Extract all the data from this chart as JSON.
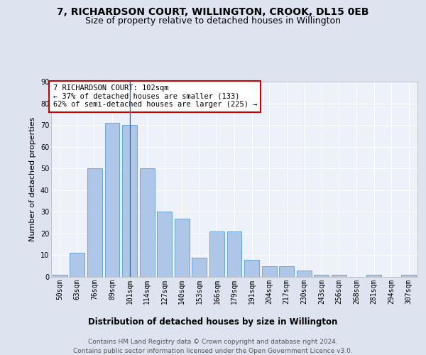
{
  "title": "7, RICHARDSON COURT, WILLINGTON, CROOK, DL15 0EB",
  "subtitle": "Size of property relative to detached houses in Willington",
  "xlabel": "Distribution of detached houses by size in Willington",
  "ylabel": "Number of detached properties",
  "bar_labels": [
    "50sqm",
    "63sqm",
    "76sqm",
    "89sqm",
    "101sqm",
    "114sqm",
    "127sqm",
    "140sqm",
    "153sqm",
    "166sqm",
    "179sqm",
    "191sqm",
    "204sqm",
    "217sqm",
    "230sqm",
    "243sqm",
    "256sqm",
    "268sqm",
    "281sqm",
    "294sqm",
    "307sqm"
  ],
  "bar_values": [
    1,
    11,
    50,
    71,
    70,
    50,
    30,
    27,
    9,
    21,
    21,
    8,
    5,
    5,
    3,
    1,
    1,
    0,
    1,
    0,
    1
  ],
  "bar_color": "#aec6e8",
  "bar_edge_color": "#5b9bd5",
  "highlight_bar_index": 4,
  "highlight_line_color": "#3f6ea6",
  "annotation_text": "7 RICHARDSON COURT: 102sqm\n← 37% of detached houses are smaller (133)\n62% of semi-detached houses are larger (225) →",
  "annotation_box_color": "#ffffff",
  "annotation_box_edge_color": "#cc0000",
  "ylim": [
    0,
    90
  ],
  "yticks": [
    0,
    10,
    20,
    30,
    40,
    50,
    60,
    70,
    80,
    90
  ],
  "background_color": "#dde4f0",
  "plot_bg_color": "#edf1fa",
  "footer_text": "Contains HM Land Registry data © Crown copyright and database right 2024.\nContains public sector information licensed under the Open Government Licence v3.0.",
  "title_fontsize": 10,
  "subtitle_fontsize": 9,
  "xlabel_fontsize": 8.5,
  "ylabel_fontsize": 8,
  "tick_fontsize": 7,
  "annotation_fontsize": 7.5,
  "footer_fontsize": 6.5
}
